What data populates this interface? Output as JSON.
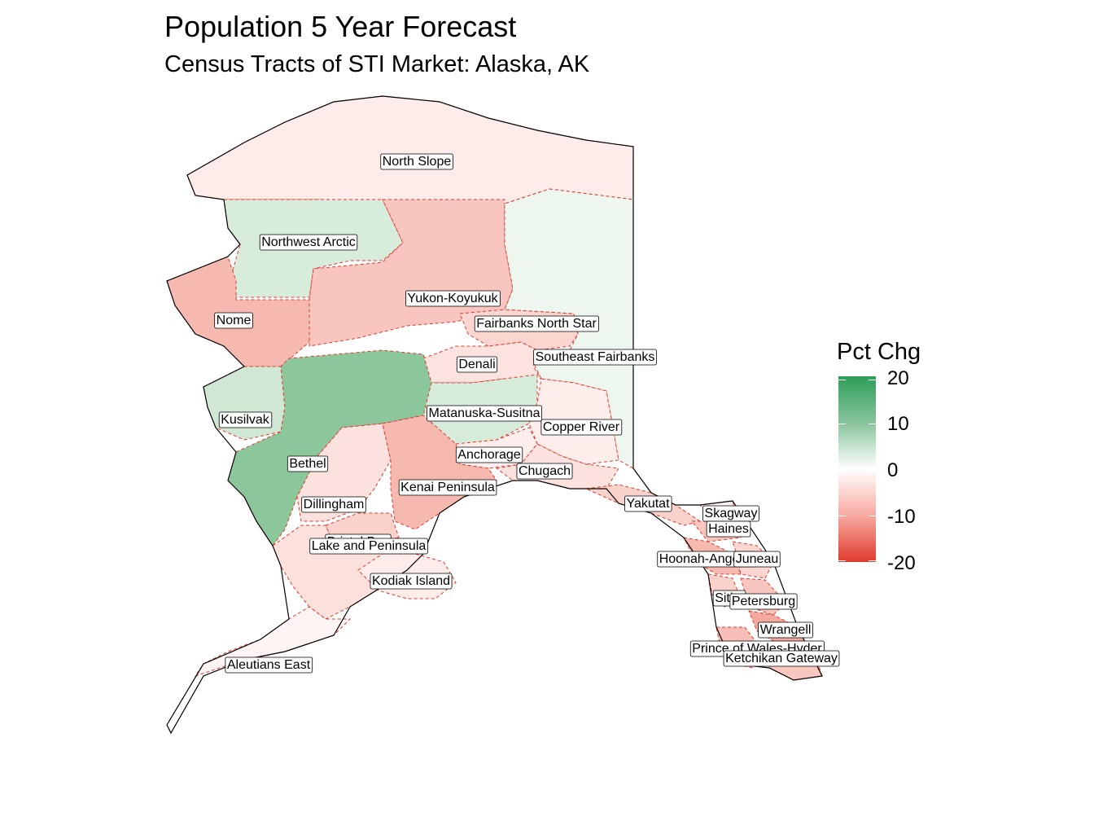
{
  "title": "Population 5 Year Forecast",
  "subtitle": "Census Tracts of STI Market: Alaska, AK",
  "legend": {
    "title": "Pct Chg",
    "ticks": [
      "20",
      "10",
      "0",
      "-10",
      "-20"
    ],
    "high_color": "#2e9e58",
    "mid_color": "#ffffff",
    "low_color": "#df3a2c"
  },
  "regions": [
    {
      "name": "North Slope",
      "pct_chg": -2,
      "color": "#fdecea"
    },
    {
      "name": "Northwest Arctic",
      "pct_chg": 4,
      "color": "#d8ecdc"
    },
    {
      "name": "Nome",
      "pct_chg": -8,
      "color": "#f6b9b0"
    },
    {
      "name": "Yukon-Koyukuk",
      "pct_chg": -7,
      "color": "#f8c6be"
    },
    {
      "name": "Fairbanks North Star",
      "pct_chg": -5,
      "color": "#fbd6d0"
    },
    {
      "name": "Southeast Fairbanks",
      "pct_chg": 1,
      "color": "#eef6f0"
    },
    {
      "name": "Denali",
      "pct_chg": -4,
      "color": "#fde3df"
    },
    {
      "name": "Matanuska-Susitna",
      "pct_chg": 4,
      "color": "#d6ebd9"
    },
    {
      "name": "Copper River",
      "pct_chg": -2,
      "color": "#fdeeec"
    },
    {
      "name": "Kusilvak",
      "pct_chg": 5,
      "color": "#cfe7d3"
    },
    {
      "name": "Bethel",
      "pct_chg": 13,
      "color": "#8cc79c"
    },
    {
      "name": "Dillingham",
      "pct_chg": -3,
      "color": "#fbe2de"
    },
    {
      "name": "Anchorage",
      "pct_chg": -2,
      "color": "#fdeeec"
    },
    {
      "name": "Chugach",
      "pct_chg": -3,
      "color": "#fbe2de"
    },
    {
      "name": "Kenai Peninsula",
      "pct_chg": -8,
      "color": "#f6b9b0"
    },
    {
      "name": "Bristol Bay",
      "pct_chg": -5,
      "color": "#fad2cc"
    },
    {
      "name": "Lake and Peninsula",
      "pct_chg": -3,
      "color": "#fbe0dc"
    },
    {
      "name": "Kodiak Island",
      "pct_chg": -2,
      "color": "#fdecea"
    },
    {
      "name": "Aleutians East",
      "pct_chg": -1,
      "color": "#fef4f3"
    },
    {
      "name": "Yakutat",
      "pct_chg": -5,
      "color": "#fad2cc"
    },
    {
      "name": "Skagway",
      "pct_chg": -1,
      "color": "#fef4f3"
    },
    {
      "name": "Haines",
      "pct_chg": -6,
      "color": "#f8c6be"
    },
    {
      "name": "Hoonah-Angoon",
      "pct_chg": -8,
      "color": "#f6b9b0"
    },
    {
      "name": "Juneau",
      "pct_chg": -4,
      "color": "#fbd6d0"
    },
    {
      "name": "Sitka",
      "pct_chg": -5,
      "color": "#fad2cc"
    },
    {
      "name": "Petersburg",
      "pct_chg": -6,
      "color": "#f8c6be"
    },
    {
      "name": "Wrangell",
      "pct_chg": -9,
      "color": "#f4a99f"
    },
    {
      "name": "Prince of Wales-Hyder",
      "pct_chg": -7,
      "color": "#f7bfb7"
    },
    {
      "name": "Ketchikan Gateway",
      "pct_chg": -6,
      "color": "#f8c6be"
    }
  ],
  "labels": [
    {
      "text": "North Slope"
    },
    {
      "text": "Northwest Arctic"
    },
    {
      "text": "Nome"
    },
    {
      "text": "Yukon-Koyukuk"
    },
    {
      "text": "Fairbanks North Star"
    },
    {
      "text": "Southeast Fairbanks"
    },
    {
      "text": "Denali"
    },
    {
      "text": "Matanuska-Susitna"
    },
    {
      "text": "Copper River"
    },
    {
      "text": "Kusilvak"
    },
    {
      "text": "Bethel"
    },
    {
      "text": "Dillingham"
    },
    {
      "text": "Anchorage"
    },
    {
      "text": "Chugach"
    },
    {
      "text": "Kenai Peninsula"
    },
    {
      "text": "Bristol Bay"
    },
    {
      "text": "Lake and Peninsula"
    },
    {
      "text": "Kodiak Island"
    },
    {
      "text": "Aleutians East"
    },
    {
      "text": "Yakutat"
    },
    {
      "text": "Skagway"
    },
    {
      "text": "Haines"
    },
    {
      "text": "Hoonah-Angoon"
    },
    {
      "text": "Juneau"
    },
    {
      "text": "Sitka"
    },
    {
      "text": "Petersburg"
    },
    {
      "text": "Wrangell"
    },
    {
      "text": "Prince of Wales-Hyder"
    },
    {
      "text": "Ketchikan Gateway"
    }
  ]
}
